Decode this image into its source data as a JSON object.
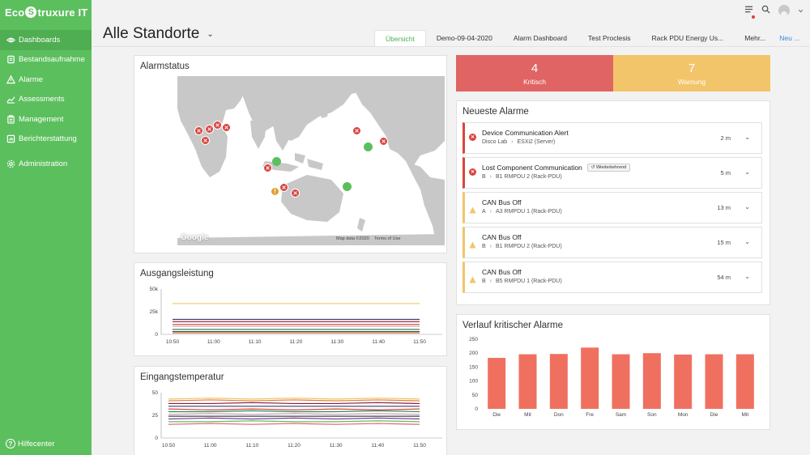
{
  "app": {
    "logo_pre": "Eco",
    "logo_mark": "S",
    "logo_post": "truxure IT"
  },
  "sidebar": {
    "items": [
      {
        "label": "Dashboards",
        "icon": "eye-icon"
      },
      {
        "label": "Bestandsaufnahme",
        "icon": "inventory-icon"
      },
      {
        "label": "Alarme",
        "icon": "warning-icon"
      },
      {
        "label": "Assessments",
        "icon": "trend-icon"
      },
      {
        "label": "Management",
        "icon": "clipboard-icon"
      },
      {
        "label": "Berichterstattung",
        "icon": "report-icon"
      },
      {
        "label": "Administration",
        "icon": "gear-icon"
      }
    ],
    "help": "Hilfecenter"
  },
  "header": {
    "title": "Alle Standorte",
    "chevron": "⌄",
    "tabs": [
      "Übersicht",
      "Demo-09-04-2020",
      "Alarm Dashboard",
      "Test Proclesis",
      "Rack PDU Energy Us...",
      "Mehr...",
      "Neu ..."
    ]
  },
  "alarm_map": {
    "title": "Alarmstatus",
    "google": "Google",
    "map_data": "Map data ©2020",
    "terms": "Terms of Use",
    "marker_x": "✕",
    "marker_warn": "!"
  },
  "summary": {
    "critical_count": "4",
    "critical_label": "Kritisch",
    "warning_count": "7",
    "warning_label": "Warnung"
  },
  "recent_alarms": {
    "title": "Neueste Alarme",
    "crit_icon": "✕",
    "chevron": "⌄",
    "items": [
      {
        "severity": "critical",
        "title": "Device Communication Alert",
        "location": "Disco Lab",
        "sep": "›",
        "device": "ESXi2 (Server)",
        "time": "2 m",
        "badge": ""
      },
      {
        "severity": "critical",
        "title": "Lost Component Communication",
        "location": "B",
        "sep": "›",
        "device": "B1 RMPDU 2 (Rack-PDU)",
        "time": "5 m",
        "badge": "Wiederkehrend"
      },
      {
        "severity": "warning",
        "title": "CAN Bus Off",
        "location": "A",
        "sep": "›",
        "device": "A3 RMPDU 1 (Rack-PDU)",
        "time": "13 m",
        "badge": ""
      },
      {
        "severity": "warning",
        "title": "CAN Bus Off",
        "location": "B",
        "sep": "›",
        "device": "B1 RMPDU 2 (Rack-PDU)",
        "time": "15 m",
        "badge": ""
      },
      {
        "severity": "warning",
        "title": "CAN Bus Off",
        "location": "B",
        "sep": "›",
        "device": "B5 RMPDU 1 (Rack-PDU)",
        "time": "54 m",
        "badge": ""
      }
    ]
  },
  "chart_data": [
    {
      "type": "line",
      "title": "Ausgangsleistung",
      "x": [
        "10:50",
        "11:00",
        "11:10",
        "11:20",
        "11:30",
        "11:40",
        "11:50"
      ],
      "yticks": [
        "0",
        "25k",
        "50k"
      ],
      "ylim": [
        0,
        50000
      ],
      "series": [
        {
          "color": "#f2c56a",
          "values": [
            34000,
            34000,
            34000,
            34000,
            34000,
            34000,
            34000
          ]
        },
        {
          "color": "#3a3f6b",
          "values": [
            16500,
            16500,
            16500,
            16500,
            16500,
            16500,
            16500
          ]
        },
        {
          "color": "#8b1a3a",
          "values": [
            14000,
            14000,
            14000,
            14000,
            14000,
            14000,
            14000
          ]
        },
        {
          "color": "#d9443f",
          "values": [
            11000,
            11000,
            11000,
            11000,
            11000,
            11000,
            11000
          ]
        },
        {
          "color": "#c8a0b8",
          "values": [
            9000,
            9000,
            9000,
            9000,
            9000,
            9000,
            9000
          ]
        },
        {
          "color": "#2e8b57",
          "values": [
            5500,
            5500,
            5500,
            5500,
            5500,
            5500,
            5500
          ]
        },
        {
          "color": "#444444",
          "values": [
            3000,
            3000,
            3000,
            3000,
            3000,
            3000,
            3000
          ]
        },
        {
          "color": "#e07b3c",
          "values": [
            1500,
            1500,
            1500,
            1500,
            1500,
            1500,
            1500
          ]
        }
      ]
    },
    {
      "type": "line",
      "title": "Eingangstemperatur",
      "x": [
        "10:50",
        "11:00",
        "11:10",
        "11:20",
        "11:30",
        "11:40",
        "11:50"
      ],
      "yticks": [
        "0",
        "25",
        "50"
      ],
      "ylim": [
        0,
        50
      ],
      "series": [
        {
          "color": "#f2c56a",
          "values": [
            43,
            44,
            43,
            44,
            43,
            44,
            43
          ]
        },
        {
          "color": "#e07b3c",
          "values": [
            41,
            42,
            41,
            42,
            41,
            42,
            41
          ]
        },
        {
          "color": "#8b1a3a",
          "values": [
            38,
            38,
            39,
            38,
            38,
            39,
            38
          ]
        },
        {
          "color": "#3a3f6b",
          "values": [
            35,
            35,
            35,
            35,
            35,
            35,
            35
          ]
        },
        {
          "color": "#d9443f",
          "values": [
            32,
            31,
            32,
            31,
            32,
            31,
            32
          ]
        },
        {
          "color": "#2e8b57",
          "values": [
            29,
            29,
            30,
            29,
            29,
            30,
            29
          ]
        },
        {
          "color": "#c8a0b8",
          "values": [
            26,
            27,
            26,
            27,
            26,
            27,
            26
          ]
        },
        {
          "color": "#444444",
          "values": [
            24,
            24,
            24,
            24,
            24,
            24,
            24
          ]
        },
        {
          "color": "#7b3f9b",
          "values": [
            21,
            22,
            21,
            22,
            21,
            22,
            21
          ]
        },
        {
          "color": "#5cbf5e",
          "values": [
            18,
            18,
            19,
            18,
            18,
            19,
            18
          ]
        },
        {
          "color": "#e06464",
          "values": [
            15,
            16,
            15,
            16,
            15,
            16,
            15
          ]
        }
      ]
    },
    {
      "type": "bar",
      "title": "Verlauf kritischer Alarme",
      "categories": [
        "Die",
        "Mit",
        "Don",
        "Fre",
        "Sam",
        "Son",
        "Mon",
        "Die",
        "Mit"
      ],
      "values": [
        183,
        196,
        197,
        220,
        196,
        200,
        195,
        196,
        196
      ],
      "yticks": [
        "0",
        "50",
        "100",
        "150",
        "200",
        "250"
      ],
      "ylim": [
        0,
        250
      ]
    }
  ],
  "colors": {
    "sidebar": "#5cbf5e",
    "critical": "#d9443f",
    "warning": "#f2c56a",
    "bar": "#f07060",
    "link": "#3b88d4"
  }
}
